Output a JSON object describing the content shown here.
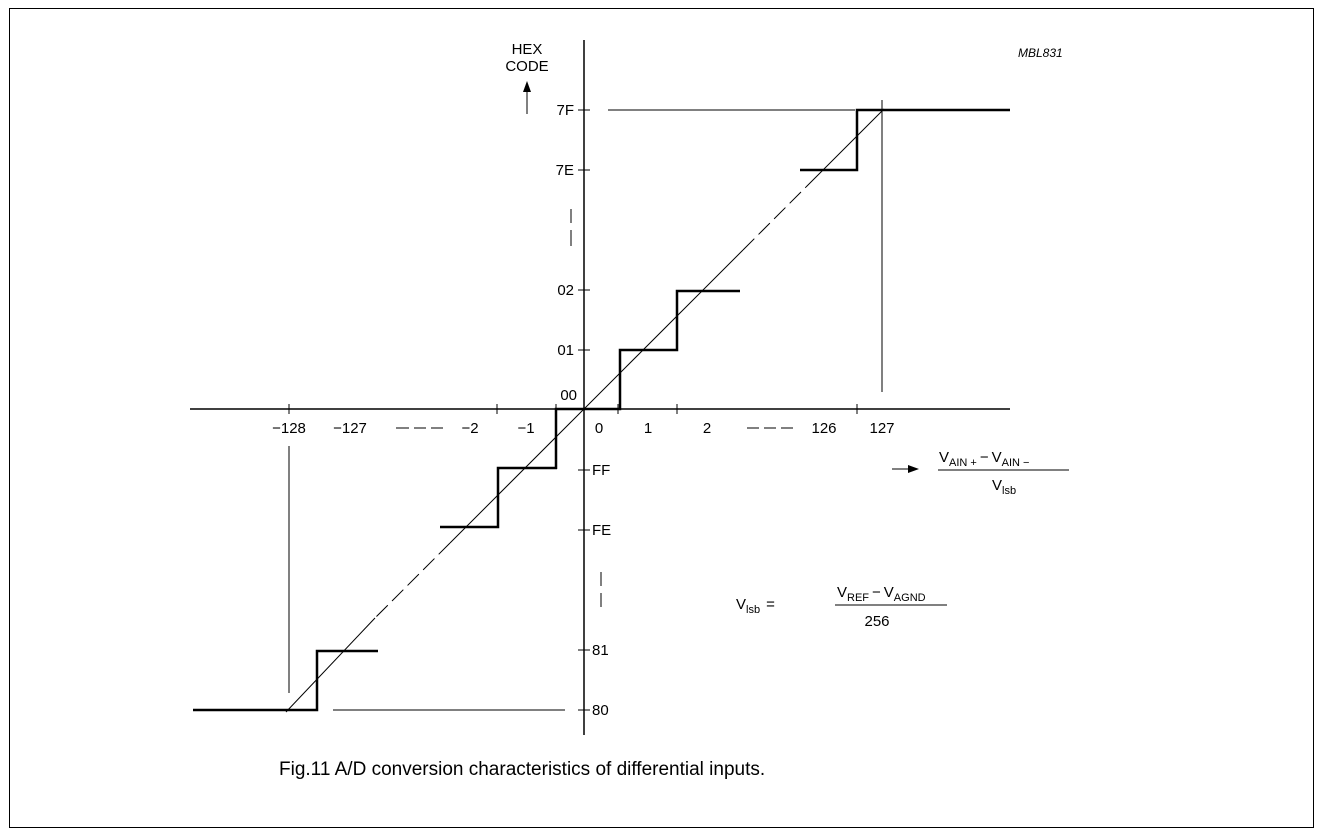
{
  "figure_code": "MBL831",
  "y_axis_title": [
    "HEX",
    "CODE"
  ],
  "y_labels": {
    "7F": "7F",
    "7E": "7E",
    "02": "02",
    "01": "01",
    "00": "00",
    "FF": "FF",
    "FE": "FE",
    "81": "81",
    "80": "80"
  },
  "x_labels": {
    "m128": "−128",
    "m127": "−127",
    "m2": "−2",
    "m1": "−1",
    "p0": "0",
    "p1": "1",
    "p2": "2",
    "p126": "126",
    "p127": "127"
  },
  "x_axis_title": {
    "num_v1": "V",
    "num_s1": "AIN +",
    "num_op": "−",
    "num_v2": "V",
    "num_s2": "AIN −",
    "den_v": "V",
    "den_s": "lsb"
  },
  "formula": {
    "lhs_v": "V",
    "lhs_s": "lsb",
    "eq": "=",
    "num_v1": "V",
    "num_s1": "REF",
    "num_op": "−",
    "num_v2": "V",
    "num_s2": "AGND",
    "den": "256"
  },
  "caption": "Fig.11  A/D conversion characteristics of differential inputs."
}
